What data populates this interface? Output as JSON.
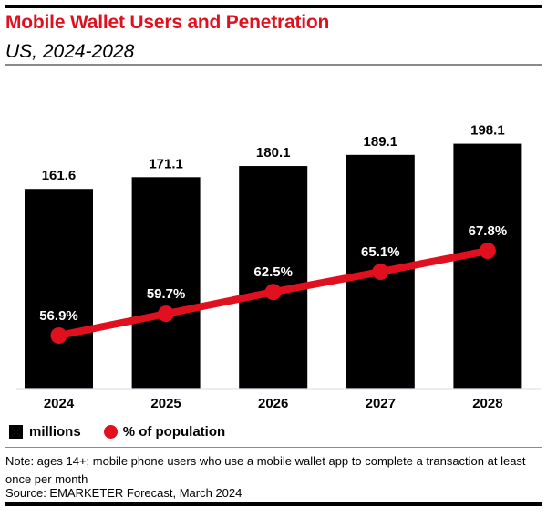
{
  "header": {
    "title": "Mobile Wallet Users and Penetration",
    "subtitle": "US, 2024-2028"
  },
  "colors": {
    "title": "#e0101e",
    "bars": "#000000",
    "line": "#e0101e",
    "bar_label": "#000000",
    "line_label": "#ffffff",
    "baseline": "#dde3ee"
  },
  "chart_data": {
    "type": "bar",
    "title": "Mobile Wallet Users and Penetration",
    "subtitle": "US, 2024-2028",
    "categories": [
      "2024",
      "2025",
      "2026",
      "2027",
      "2028"
    ],
    "series": [
      {
        "name": "millions",
        "type": "bar",
        "axis": "left",
        "values": [
          161.6,
          171.1,
          180.1,
          189.1,
          198.1
        ],
        "labels": [
          "161.6",
          "171.1",
          "180.1",
          "189.1",
          "198.1"
        ]
      },
      {
        "name": "% of population",
        "type": "line",
        "axis": "right",
        "values": [
          56.9,
          59.7,
          62.5,
          65.1,
          67.8
        ],
        "labels": [
          "56.9%",
          "59.7%",
          "62.5%",
          "65.1%",
          "67.8%"
        ]
      }
    ],
    "xlabel": "",
    "ylabel": "",
    "bar_ylim": [
      0,
      210
    ],
    "line_ylim": [
      35,
      75
    ],
    "grid": false,
    "legend_position": "bottom-left",
    "legend": [
      {
        "label": "millions",
        "marker": "square"
      },
      {
        "label": "% of population",
        "marker": "circle"
      }
    ]
  },
  "footer": {
    "note": "Note: ages 14+; mobile phone users who use a mobile wallet app to complete a transaction at least once per month",
    "source": "Source: EMARKETER Forecast, March 2024"
  }
}
